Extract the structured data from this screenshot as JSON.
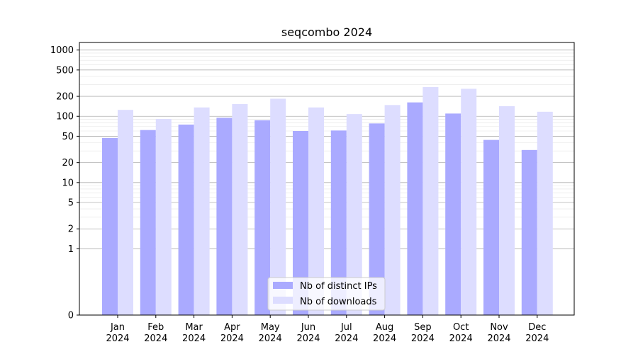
{
  "chart_data": {
    "type": "bar",
    "title": "seqcombo 2024",
    "xlabel": "",
    "ylabel": "",
    "yscale": "symlog",
    "ylim": [
      0,
      1300
    ],
    "yticks": [
      0,
      1,
      2,
      5,
      10,
      20,
      50,
      100,
      200,
      500,
      1000
    ],
    "ytick_labels": [
      "0",
      "1",
      "2",
      "5",
      "10",
      "20",
      "50",
      "100",
      "200",
      "500",
      "1000"
    ],
    "grid": true,
    "legend_position": "bottom-center",
    "categories": [
      [
        "Jan",
        "2024"
      ],
      [
        "Feb",
        "2024"
      ],
      [
        "Mar",
        "2024"
      ],
      [
        "Apr",
        "2024"
      ],
      [
        "May",
        "2024"
      ],
      [
        "Jun",
        "2024"
      ],
      [
        "Jul",
        "2024"
      ],
      [
        "Aug",
        "2024"
      ],
      [
        "Sep",
        "2024"
      ],
      [
        "Oct",
        "2024"
      ],
      [
        "Nov",
        "2024"
      ],
      [
        "Dec",
        "2024"
      ]
    ],
    "series": [
      {
        "name": "Nb of distinct IPs",
        "color": "#aaaaff",
        "values": [
          47,
          62,
          75,
          95,
          87,
          60,
          61,
          78,
          162,
          110,
          44,
          31
        ]
      },
      {
        "name": "Nb of downloads",
        "color": "#ddddff",
        "values": [
          125,
          91,
          136,
          153,
          184,
          136,
          108,
          148,
          276,
          260,
          142,
          117
        ]
      }
    ]
  }
}
